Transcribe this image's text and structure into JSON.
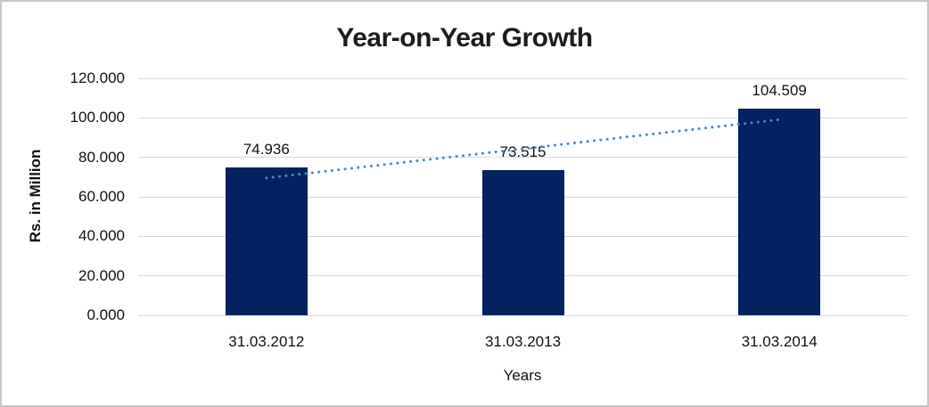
{
  "chart_data": {
    "type": "bar",
    "title": "Year-on-Year Growth",
    "xlabel": "Years",
    "ylabel": "Rs. in Million",
    "categories": [
      "31.03.2012",
      "31.03.2013",
      "31.03.2014"
    ],
    "values": [
      74.936,
      73.515,
      104.509
    ],
    "data_labels": [
      "74.936",
      "73.515",
      "104.509"
    ],
    "ytick_labels": [
      "0.000",
      "20.000",
      "40.000",
      "60.000",
      "80.000",
      "100.000",
      "120.000"
    ],
    "ylim": [
      0,
      120
    ],
    "grid": true,
    "legend_position": "none",
    "bar_color": "#03225f",
    "gridline_color": "#d9d9d9",
    "trendline": {
      "type": "linear",
      "style": "dotted",
      "color": "#4e86c8"
    }
  }
}
